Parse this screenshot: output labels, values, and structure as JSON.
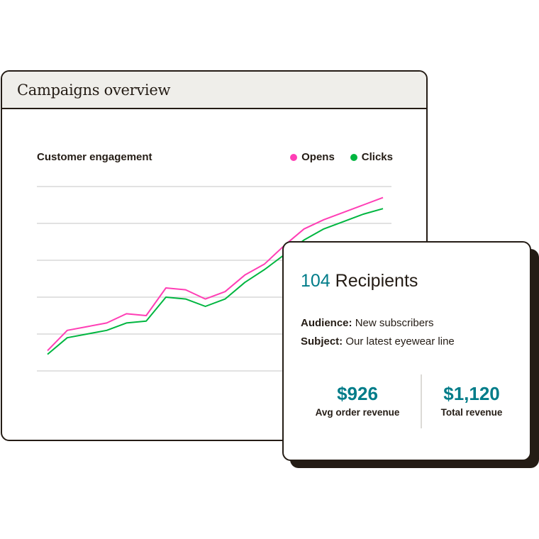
{
  "panel": {
    "title": "Campaigns overview"
  },
  "chart_data": {
    "type": "line",
    "title": "Customer engagement",
    "x": [
      1,
      2,
      3,
      4,
      5,
      6,
      7,
      8,
      9,
      10,
      11,
      12,
      13,
      14,
      15,
      16,
      17,
      18
    ],
    "series": [
      {
        "name": "Opens",
        "color": "#ff3eb5",
        "values": [
          11,
          22,
          24,
          26,
          31,
          30,
          45,
          44,
          39,
          43,
          52,
          58,
          68,
          77,
          82,
          86,
          90,
          94
        ]
      },
      {
        "name": "Clicks",
        "color": "#00b640",
        "values": [
          9,
          18,
          20,
          22,
          26,
          27,
          40,
          39,
          35,
          39,
          48,
          55,
          63,
          71,
          77,
          81,
          85,
          88
        ]
      }
    ],
    "ylim": [
      0,
      100
    ],
    "grid": true,
    "legend": "top-right"
  },
  "card": {
    "recipients_count": "104",
    "recipients_label": "Recipients",
    "audience_label": "Audience:",
    "audience_value": "New subscribers",
    "subject_label": "Subject:",
    "subject_value": "Our latest eyewear line",
    "stats": [
      {
        "value": "$926",
        "label": "Avg order revenue"
      },
      {
        "value": "$1,120",
        "label": "Total revenue"
      }
    ]
  },
  "colors": {
    "teal": "#007c89",
    "ink": "#241c15",
    "opens": "#ff3eb5",
    "clicks": "#00b640"
  }
}
